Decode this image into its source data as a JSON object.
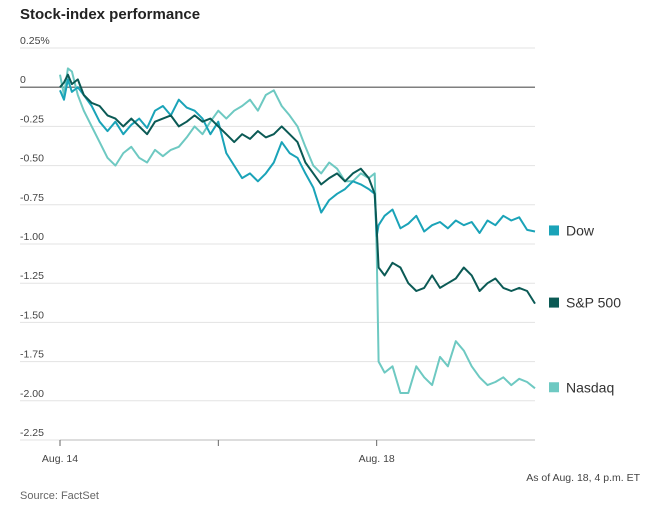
{
  "chart_data": {
    "type": "line",
    "title": "Stock-index performance",
    "y_ticks": [
      0.25,
      0,
      -0.25,
      -0.5,
      -0.75,
      -1.0,
      -1.25,
      -1.5,
      -1.75,
      -2.0,
      -2.25
    ],
    "y_tick_labels": [
      "0.25%",
      "0",
      "-0.25",
      "-0.50",
      "-0.75",
      "-1.00",
      "-1.25",
      "-1.50",
      "-1.75",
      "-2.00",
      "-2.25"
    ],
    "ylim": [
      -2.25,
      0.25
    ],
    "xlim": [
      0,
      12
    ],
    "x_ticks": [
      0,
      4,
      8
    ],
    "x_tick_labels": [
      "Aug. 14",
      "",
      "Aug. 18"
    ],
    "x_note": "As of Aug. 18, 4 p.m. ET",
    "source": "Source: FactSet",
    "grid": true,
    "legend_placement": "right, at line ends",
    "series": [
      {
        "name": "Dow",
        "color": "#1aa3b8",
        "x": [
          0,
          0.1,
          0.2,
          0.3,
          0.45,
          0.6,
          0.8,
          1.0,
          1.2,
          1.4,
          1.6,
          1.8,
          2.0,
          2.2,
          2.4,
          2.6,
          2.8,
          3.0,
          3.2,
          3.4,
          3.6,
          3.8,
          4.0,
          4.2,
          4.4,
          4.6,
          4.8,
          5.0,
          5.2,
          5.4,
          5.6,
          5.8,
          6.0,
          6.2,
          6.4,
          6.6,
          6.8,
          7.0,
          7.2,
          7.4,
          7.6,
          7.8,
          7.95,
          8.0,
          8.05,
          8.2,
          8.4,
          8.6,
          8.8,
          9.0,
          9.2,
          9.4,
          9.6,
          9.8,
          10.0,
          10.2,
          10.4,
          10.6,
          10.8,
          11.0,
          11.2,
          11.4,
          11.6,
          11.8,
          12.0
        ],
        "y": [
          -0.02,
          -0.08,
          0.05,
          -0.03,
          0.0,
          -0.05,
          -0.12,
          -0.22,
          -0.28,
          -0.22,
          -0.3,
          -0.24,
          -0.2,
          -0.26,
          -0.15,
          -0.12,
          -0.18,
          -0.08,
          -0.13,
          -0.15,
          -0.2,
          -0.3,
          -0.22,
          -0.42,
          -0.5,
          -0.58,
          -0.55,
          -0.6,
          -0.55,
          -0.48,
          -0.35,
          -0.42,
          -0.45,
          -0.55,
          -0.64,
          -0.8,
          -0.72,
          -0.68,
          -0.65,
          -0.6,
          -0.62,
          -0.65,
          -0.68,
          -0.95,
          -0.88,
          -0.82,
          -0.78,
          -0.9,
          -0.87,
          -0.82,
          -0.92,
          -0.88,
          -0.86,
          -0.9,
          -0.85,
          -0.88,
          -0.86,
          -0.93,
          -0.85,
          -0.88,
          -0.82,
          -0.85,
          -0.83,
          -0.91,
          -0.92
        ]
      },
      {
        "name": "S&P 500",
        "color": "#0b5a55",
        "x": [
          0,
          0.1,
          0.2,
          0.3,
          0.45,
          0.6,
          0.8,
          1.0,
          1.2,
          1.4,
          1.6,
          1.8,
          2.0,
          2.2,
          2.4,
          2.6,
          2.8,
          3.0,
          3.2,
          3.4,
          3.6,
          3.8,
          4.0,
          4.2,
          4.4,
          4.6,
          4.8,
          5.0,
          5.2,
          5.4,
          5.6,
          5.8,
          6.0,
          6.2,
          6.4,
          6.6,
          6.8,
          7.0,
          7.2,
          7.4,
          7.6,
          7.8,
          7.95,
          8.0,
          8.05,
          8.2,
          8.4,
          8.6,
          8.8,
          9.0,
          9.2,
          9.4,
          9.6,
          9.8,
          10.0,
          10.2,
          10.4,
          10.6,
          10.8,
          11.0,
          11.2,
          11.4,
          11.6,
          11.8,
          12.0
        ],
        "y": [
          0.0,
          0.03,
          0.08,
          0.02,
          0.05,
          -0.05,
          -0.1,
          -0.12,
          -0.18,
          -0.2,
          -0.25,
          -0.2,
          -0.25,
          -0.3,
          -0.22,
          -0.2,
          -0.18,
          -0.25,
          -0.22,
          -0.18,
          -0.22,
          -0.2,
          -0.25,
          -0.3,
          -0.35,
          -0.3,
          -0.33,
          -0.28,
          -0.32,
          -0.3,
          -0.25,
          -0.3,
          -0.35,
          -0.48,
          -0.55,
          -0.62,
          -0.58,
          -0.55,
          -0.6,
          -0.55,
          -0.52,
          -0.58,
          -0.68,
          -0.9,
          -1.15,
          -1.2,
          -1.12,
          -1.15,
          -1.25,
          -1.3,
          -1.28,
          -1.2,
          -1.28,
          -1.25,
          -1.22,
          -1.15,
          -1.2,
          -1.3,
          -1.25,
          -1.22,
          -1.28,
          -1.3,
          -1.28,
          -1.3,
          -1.38
        ]
      },
      {
        "name": "Nasdaq",
        "color": "#6ec9c2",
        "x": [
          0,
          0.1,
          0.2,
          0.3,
          0.45,
          0.6,
          0.8,
          1.0,
          1.2,
          1.4,
          1.6,
          1.8,
          2.0,
          2.2,
          2.4,
          2.6,
          2.8,
          3.0,
          3.2,
          3.4,
          3.6,
          3.8,
          4.0,
          4.2,
          4.4,
          4.6,
          4.8,
          5.0,
          5.2,
          5.4,
          5.6,
          5.8,
          6.0,
          6.2,
          6.4,
          6.6,
          6.8,
          7.0,
          7.2,
          7.4,
          7.6,
          7.8,
          7.95,
          8.0,
          8.05,
          8.2,
          8.4,
          8.6,
          8.8,
          9.0,
          9.2,
          9.4,
          9.6,
          9.8,
          10.0,
          10.2,
          10.4,
          10.6,
          10.8,
          11.0,
          11.2,
          11.4,
          11.6,
          11.8,
          12.0
        ],
        "y": [
          0.08,
          -0.05,
          0.12,
          0.1,
          -0.05,
          -0.15,
          -0.25,
          -0.35,
          -0.45,
          -0.5,
          -0.42,
          -0.38,
          -0.45,
          -0.48,
          -0.4,
          -0.44,
          -0.4,
          -0.38,
          -0.32,
          -0.25,
          -0.3,
          -0.22,
          -0.15,
          -0.2,
          -0.15,
          -0.12,
          -0.08,
          -0.15,
          -0.05,
          -0.02,
          -0.12,
          -0.18,
          -0.25,
          -0.38,
          -0.5,
          -0.55,
          -0.48,
          -0.52,
          -0.6,
          -0.6,
          -0.55,
          -0.58,
          -0.55,
          -1.05,
          -1.75,
          -1.82,
          -1.78,
          -1.95,
          -1.95,
          -1.78,
          -1.85,
          -1.9,
          -1.72,
          -1.78,
          -1.62,
          -1.68,
          -1.78,
          -1.85,
          -1.9,
          -1.88,
          -1.85,
          -1.9,
          -1.86,
          -1.88,
          -1.92
        ]
      }
    ]
  }
}
